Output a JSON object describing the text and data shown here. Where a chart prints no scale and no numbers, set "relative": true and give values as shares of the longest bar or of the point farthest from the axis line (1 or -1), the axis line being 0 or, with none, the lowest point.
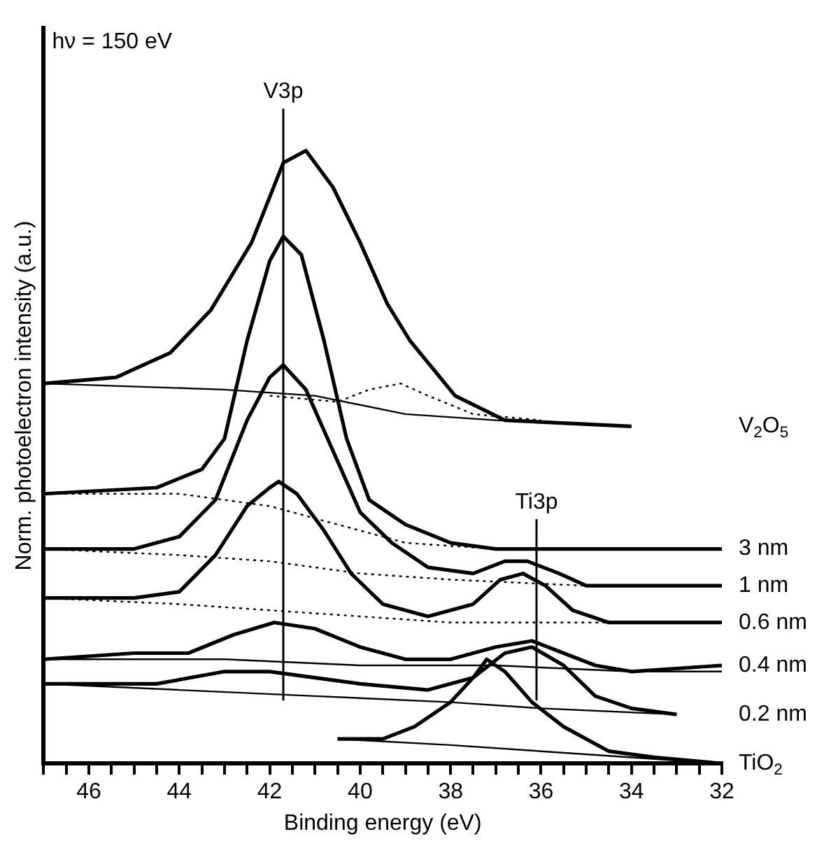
{
  "chart_data": {
    "type": "line",
    "xlabel": "Binding energy (eV)",
    "ylabel": "Norm. photoelectron intensity (a.u.)",
    "relative": true,
    "legend": false,
    "grid": false,
    "xlim": [
      47,
      32
    ],
    "xticks": [
      {
        "value": 47,
        "label": null
      },
      {
        "value": 46.5,
        "label": null
      },
      46,
      {
        "value": 45.5,
        "label": null
      },
      {
        "value": 45,
        "label": null
      },
      {
        "value": 44.5,
        "label": null
      },
      44,
      {
        "value": 43.5,
        "label": null
      },
      {
        "value": 43,
        "label": null
      },
      {
        "value": 42.5,
        "label": null
      },
      42,
      {
        "value": 41.5,
        "label": null
      },
      {
        "value": 41,
        "label": null
      },
      {
        "value": 40.5,
        "label": null
      },
      40,
      {
        "value": 39.5,
        "label": null
      },
      {
        "value": 39,
        "label": null
      },
      {
        "value": 38.5,
        "label": null
      },
      38,
      {
        "value": 37.5,
        "label": null
      },
      {
        "value": 37,
        "label": null
      },
      {
        "value": 36.5,
        "label": null
      },
      36,
      {
        "value": 35.5,
        "label": null
      },
      {
        "value": 35,
        "label": null
      },
      {
        "value": 34.5,
        "label": null
      },
      34,
      {
        "value": 33.5,
        "label": null
      },
      {
        "value": 33,
        "label": null
      },
      {
        "value": 32.5,
        "label": null
      },
      32
    ],
    "annotations": [
      "hν = 150 eV"
    ],
    "ref_lines": [
      {
        "axis": "x",
        "value": 41.7,
        "label": "V3p",
        "color": "#000000"
      },
      {
        "axis": "x",
        "value": 36.1,
        "label": "Ti3p",
        "color": "#000000"
      }
    ],
    "series": [
      {
        "name": "V$_{2}$O$_{5}$",
        "color": "#000000",
        "x": [
          47.0,
          45.4,
          44.2,
          43.3,
          42.4,
          41.7,
          41.2,
          40.6,
          40.0,
          39.4,
          38.9,
          37.9,
          36.8,
          34.0
        ],
        "values": [
          0.62,
          0.63,
          0.67,
          0.74,
          0.85,
          0.98,
          1.0,
          0.94,
          0.85,
          0.75,
          0.69,
          0.6,
          0.56,
          0.55
        ]
      },
      {
        "color": "#000000",
        "x": [
          47,
          43,
          41,
          39,
          37,
          34
        ],
        "values": [
          0.62,
          0.61,
          0.6,
          0.57,
          0.56,
          0.55
        ]
      },
      {
        "color": "#000000",
        "line_style": "dotted",
        "x": [
          42.0,
          40.5,
          39.8,
          39.1,
          38.5,
          37.5,
          36.0
        ],
        "values": [
          0.6,
          0.59,
          0.61,
          0.62,
          0.6,
          0.57,
          0.56
        ]
      },
      {
        "name": "3 nm",
        "color": "#000000",
        "x": [
          47,
          44.5,
          43.5,
          43.0,
          42.5,
          42.0,
          41.7,
          41.3,
          40.8,
          40.3,
          39.8,
          39.0,
          38.0,
          37.0,
          32.0
        ],
        "values": [
          0.44,
          0.45,
          0.48,
          0.53,
          0.69,
          0.82,
          0.86,
          0.83,
          0.69,
          0.53,
          0.43,
          0.39,
          0.36,
          0.35,
          0.35
        ]
      },
      {
        "color": "#000000",
        "line_style": "dotted",
        "x": [
          47,
          44,
          42,
          40.5,
          39,
          37,
          32
        ],
        "values": [
          0.44,
          0.44,
          0.42,
          0.39,
          0.36,
          0.35,
          0.35
        ]
      },
      {
        "name": "1 nm",
        "color": "#000000",
        "x": [
          47,
          45,
          44,
          43.2,
          42.5,
          42.0,
          41.7,
          41.2,
          40.6,
          40.0,
          39.3,
          38.5,
          37.5,
          36.8,
          36.3,
          35.6,
          35.0,
          34.0,
          32.0
        ],
        "values": [
          0.35,
          0.35,
          0.37,
          0.43,
          0.56,
          0.63,
          0.65,
          0.61,
          0.51,
          0.41,
          0.36,
          0.32,
          0.31,
          0.33,
          0.33,
          0.31,
          0.29,
          0.29,
          0.29
        ]
      },
      {
        "color": "#000000",
        "line_style": "dotted",
        "x": [
          47,
          44,
          42,
          40,
          38,
          35,
          32
        ],
        "values": [
          0.35,
          0.34,
          0.33,
          0.31,
          0.3,
          0.29,
          0.29
        ]
      },
      {
        "name": "0.6 nm",
        "color": "#000000",
        "x": [
          47,
          45,
          44,
          43.2,
          42.5,
          42.0,
          41.8,
          41.4,
          40.8,
          40.2,
          39.5,
          38.5,
          37.5,
          36.9,
          36.4,
          35.9,
          35.3,
          34.5,
          32.0
        ],
        "values": [
          0.27,
          0.27,
          0.28,
          0.34,
          0.42,
          0.45,
          0.46,
          0.44,
          0.38,
          0.31,
          0.26,
          0.24,
          0.26,
          0.3,
          0.31,
          0.29,
          0.25,
          0.23,
          0.23
        ]
      },
      {
        "color": "#000000",
        "line_style": "dotted",
        "x": [
          47,
          44,
          42,
          40,
          38,
          35,
          32
        ],
        "values": [
          0.27,
          0.26,
          0.25,
          0.24,
          0.23,
          0.23,
          0.23
        ]
      },
      {
        "name": "0.4 nm",
        "color": "#000000",
        "x": [
          47,
          45,
          43.8,
          42.8,
          41.9,
          41.0,
          40.0,
          39.0,
          38.0,
          37.0,
          36.2,
          35.5,
          34.8,
          34.0,
          32.0
        ],
        "values": [
          0.17,
          0.18,
          0.18,
          0.21,
          0.23,
          0.22,
          0.19,
          0.17,
          0.17,
          0.19,
          0.2,
          0.18,
          0.16,
          0.15,
          0.16
        ]
      },
      {
        "color": "#000000",
        "x": [
          47,
          43,
          40,
          37,
          34,
          32
        ],
        "values": [
          0.17,
          0.17,
          0.16,
          0.16,
          0.15,
          0.15
        ]
      },
      {
        "name": "0.2 nm",
        "color": "#000000",
        "x": [
          47,
          46,
          44.5,
          43.0,
          42.0,
          41.0,
          40.0,
          38.5,
          37.5,
          36.8,
          36.2,
          35.5,
          34.8,
          34.0,
          33.0
        ],
        "values": [
          0.13,
          0.13,
          0.13,
          0.15,
          0.15,
          0.14,
          0.13,
          0.12,
          0.14,
          0.18,
          0.19,
          0.16,
          0.11,
          0.09,
          0.08
        ]
      },
      {
        "color": "#000000",
        "x": [
          47,
          44,
          41,
          38,
          36,
          33
        ],
        "values": [
          0.13,
          0.12,
          0.11,
          0.1,
          0.09,
          0.08
        ]
      },
      {
        "name": "TiO$_{2}$",
        "color": "#000000",
        "x": [
          40.5,
          39.5,
          38.8,
          38.0,
          37.5,
          37.2,
          36.8,
          36.2,
          35.5,
          34.5,
          33.5,
          32.0
        ],
        "values": [
          0.04,
          0.04,
          0.06,
          0.1,
          0.14,
          0.17,
          0.15,
          0.1,
          0.06,
          0.02,
          0.01,
          0.0
        ]
      },
      {
        "color": "#000000",
        "x": [
          40.5,
          38,
          36,
          34,
          32
        ],
        "values": [
          0.04,
          0.03,
          0.02,
          0.01,
          0.0
        ]
      }
    ]
  }
}
